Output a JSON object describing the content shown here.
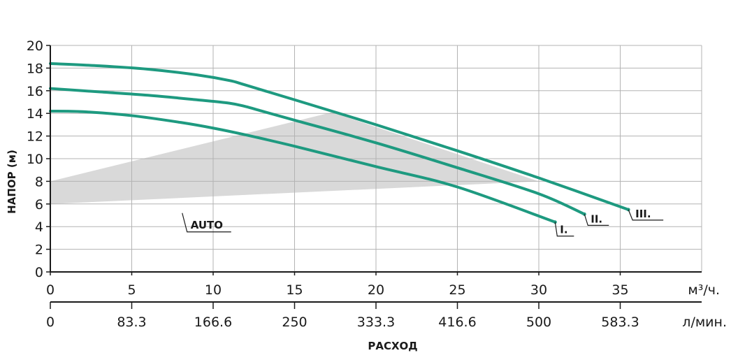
{
  "chart_data": {
    "type": "line",
    "ylabel": "НАПОР (м)",
    "xlabel": "РАСХОД",
    "x_unit_primary": "м³/ч.",
    "x_unit_secondary": "л/мин.",
    "xlim": [
      0,
      40
    ],
    "ylim": [
      0,
      20
    ],
    "x_ticks": [
      0,
      5,
      10,
      15,
      20,
      25,
      30,
      35
    ],
    "x_tick_labels_primary": [
      "0",
      "5",
      "10",
      "15",
      "20",
      "25",
      "30",
      "35"
    ],
    "x_tick_labels_secondary": [
      "0",
      "83.3",
      "166.6",
      "250",
      "333.3",
      "416.6",
      "500",
      "583.3"
    ],
    "y_ticks": [
      0,
      2,
      4,
      6,
      8,
      10,
      12,
      14,
      16,
      18,
      20
    ],
    "y_tick_labels": [
      "0",
      "2",
      "4",
      "6",
      "8",
      "10",
      "12",
      "14",
      "16",
      "18",
      "20"
    ],
    "grid": true,
    "line_color": "#1e9a80",
    "area_color": "#d9d9d9",
    "grid_color": "#b3b3b3",
    "series": [
      {
        "name": "I.",
        "points": [
          [
            0,
            14.2
          ],
          [
            2,
            14.15
          ],
          [
            5,
            13.8
          ],
          [
            8,
            13.2
          ],
          [
            10,
            12.7
          ],
          [
            12,
            12.1
          ],
          [
            15,
            11.1
          ],
          [
            20,
            9.3
          ],
          [
            25,
            7.5
          ],
          [
            31,
            4.4
          ]
        ]
      },
      {
        "name": "II.",
        "points": [
          [
            0,
            16.2
          ],
          [
            3,
            15.9
          ],
          [
            6,
            15.6
          ],
          [
            9,
            15.2
          ],
          [
            11,
            14.9
          ],
          [
            12,
            14.6
          ],
          [
            13,
            14.2
          ],
          [
            15,
            13.4
          ],
          [
            20,
            11.4
          ],
          [
            25,
            9.2
          ],
          [
            30,
            6.9
          ],
          [
            32.8,
            5.1
          ]
        ]
      },
      {
        "name": "III.",
        "points": [
          [
            0,
            18.4
          ],
          [
            3,
            18.2
          ],
          [
            6,
            17.9
          ],
          [
            9,
            17.4
          ],
          [
            11,
            16.9
          ],
          [
            12,
            16.5
          ],
          [
            15,
            15.2
          ],
          [
            20,
            13.0
          ],
          [
            25,
            10.7
          ],
          [
            30,
            8.3
          ],
          [
            35.5,
            5.5
          ]
        ]
      }
    ],
    "annotations": [
      {
        "label": "AUTO",
        "polygon": [
          [
            0,
            8
          ],
          [
            17.3,
            14.1
          ],
          [
            30,
            8
          ],
          [
            0,
            6
          ]
        ]
      }
    ]
  }
}
